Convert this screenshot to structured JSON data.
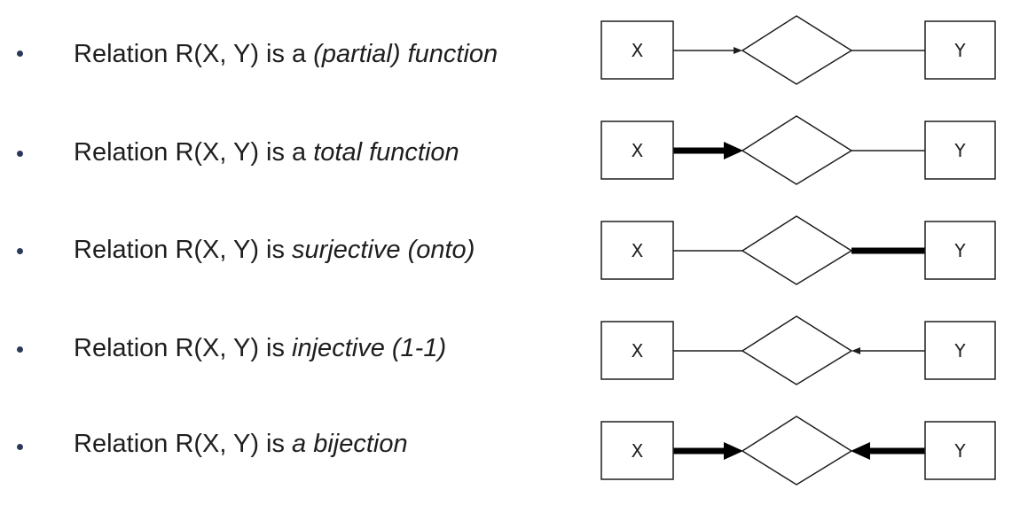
{
  "rows": [
    {
      "prefix": "Relation R(X, Y) is a ",
      "emph": "(partial) function",
      "entity_x": "X",
      "entity_y": "Y",
      "left_connector": "arrow",
      "right_connector": "line"
    },
    {
      "prefix": "Relation R(X, Y) is a ",
      "emph": "total function",
      "entity_x": "X",
      "entity_y": "Y",
      "left_connector": "thick-arrow",
      "right_connector": "line"
    },
    {
      "prefix": "Relation R(X, Y) is ",
      "emph": "surjective (onto)",
      "entity_x": "X",
      "entity_y": "Y",
      "left_connector": "line",
      "right_connector": "thick-line"
    },
    {
      "prefix": "Relation R(X, Y) is ",
      "emph": "injective (1-1)",
      "entity_x": "X",
      "entity_y": "Y",
      "left_connector": "line",
      "right_connector": "arrow"
    },
    {
      "prefix": "Relation R(X, Y) is ",
      "emph": "a bijection",
      "entity_x": "X",
      "entity_y": "Y",
      "left_connector": "thick-arrow",
      "right_connector": "thick-arrow"
    }
  ]
}
